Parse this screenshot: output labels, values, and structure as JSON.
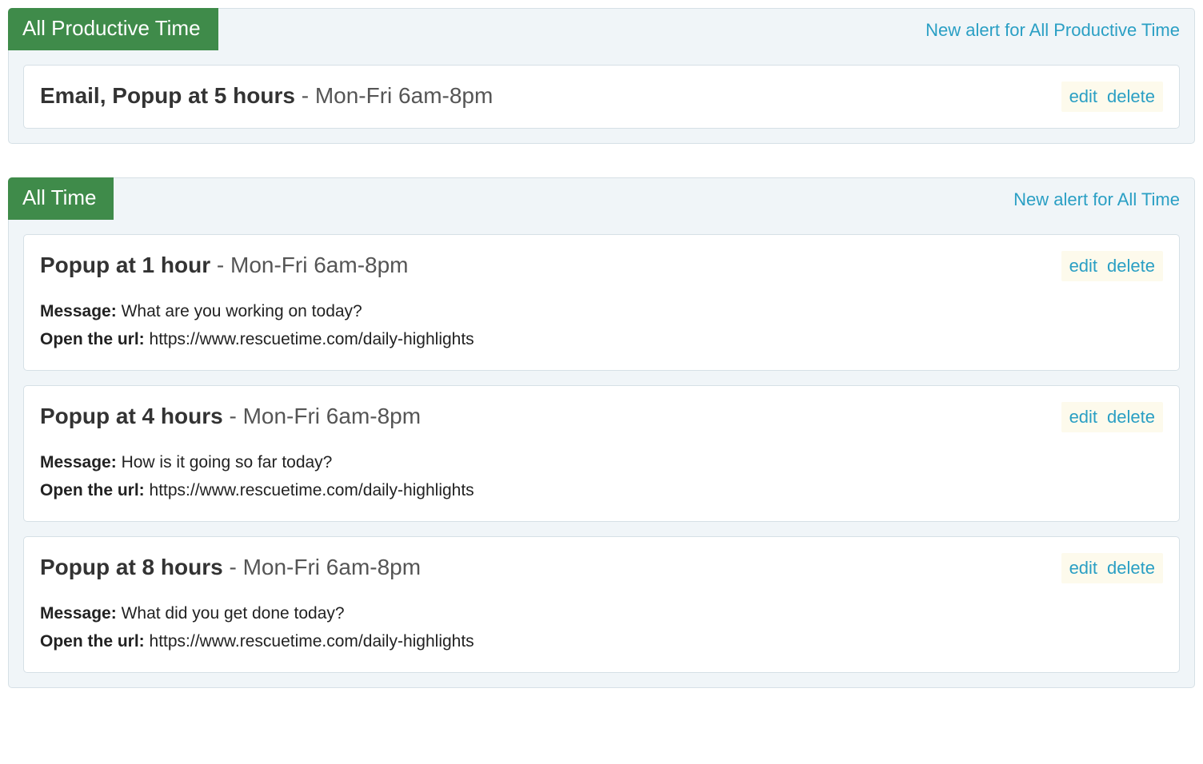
{
  "colors": {
    "section_bg": "#f0f5f8",
    "section_border": "#d6e0e6",
    "title_bg": "#3f8b4a",
    "title_text": "#ffffff",
    "link": "#2a9fc4",
    "card_bg": "#ffffff",
    "actions_bg": "#fdfaec",
    "text_primary": "#333333",
    "text_secondary": "#555555"
  },
  "labels": {
    "edit": "edit",
    "delete": "delete",
    "message_label": "Message:",
    "url_label": "Open the url:",
    "separator": " - "
  },
  "sections": [
    {
      "title": "All Productive Time",
      "new_alert_text": "New alert for All Productive Time",
      "cards": [
        {
          "title_bold": "Email, Popup at 5 hours",
          "schedule": "Mon-Fri 6am-8pm",
          "has_body": false
        }
      ]
    },
    {
      "title": "All Time",
      "new_alert_text": "New alert for All Time",
      "cards": [
        {
          "title_bold": "Popup at 1 hour",
          "schedule": "Mon-Fri 6am-8pm",
          "has_body": true,
          "message": "What are you working on today?",
          "url": "https://www.rescuetime.com/daily-highlights"
        },
        {
          "title_bold": "Popup at 4 hours",
          "schedule": "Mon-Fri 6am-8pm",
          "has_body": true,
          "message": "How is it going so far today?",
          "url": "https://www.rescuetime.com/daily-highlights"
        },
        {
          "title_bold": "Popup at 8 hours",
          "schedule": "Mon-Fri 6am-8pm",
          "has_body": true,
          "message": "What did you get done today?",
          "url": "https://www.rescuetime.com/daily-highlights"
        }
      ]
    }
  ]
}
